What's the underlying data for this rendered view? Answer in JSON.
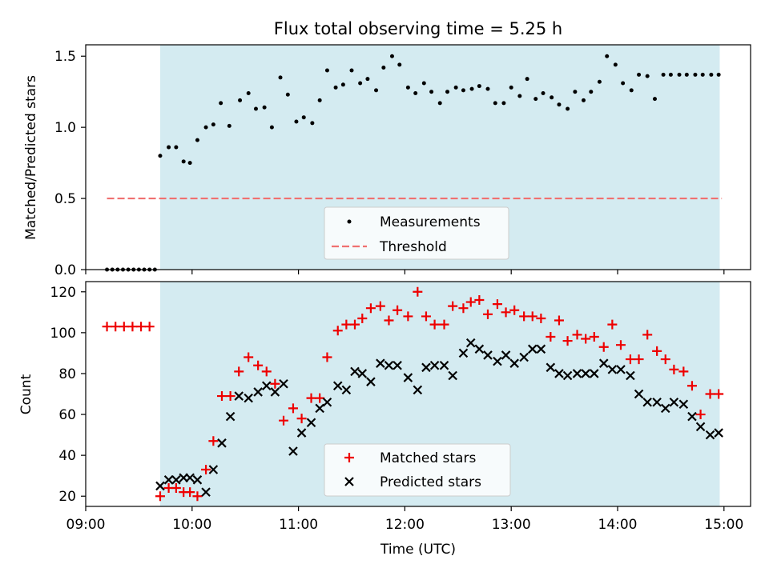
{
  "colors": {
    "observing_span": "#d4ebf1",
    "measurements": "#000000",
    "threshold": "#f07070",
    "matched": "#ee0000",
    "predicted": "#000000"
  },
  "xaxis": {
    "label": "Time (UTC)",
    "range_hours": [
      9.0,
      15.25
    ],
    "ticks": [
      {
        "value": 9,
        "label": "09:00"
      },
      {
        "value": 10,
        "label": "10:00"
      },
      {
        "value": 11,
        "label": "11:00"
      },
      {
        "value": 12,
        "label": "12:00"
      },
      {
        "value": 13,
        "label": "13:00"
      },
      {
        "value": 14,
        "label": "14:00"
      },
      {
        "value": 15,
        "label": "15:00"
      }
    ]
  },
  "chart_data": [
    {
      "type": "scatter",
      "title": "Flux total observing time = 5.25 h",
      "xlabel": "",
      "ylabel": "Matched/Predicted stars",
      "xlim": [
        9.0,
        15.25
      ],
      "ylim": [
        0,
        1.58
      ],
      "yticks": [
        {
          "value": 0,
          "label": "0.0"
        },
        {
          "value": 0.5,
          "label": "0.5"
        },
        {
          "value": 1.0,
          "label": "1.0"
        },
        {
          "value": 1.5,
          "label": "1.5"
        }
      ],
      "observing_span": [
        9.7,
        14.96
      ],
      "threshold": {
        "name": "Threshold",
        "y": 0.5,
        "x": [
          9.2,
          14.98
        ]
      },
      "legend": {
        "placement": "lower center",
        "entries": [
          "Measurements",
          "Threshold"
        ]
      },
      "series": [
        {
          "name": "Measurements",
          "x": [
            9.2,
            9.25,
            9.3,
            9.35,
            9.4,
            9.45,
            9.5,
            9.55,
            9.6,
            9.65,
            9.7,
            9.78,
            9.85,
            9.92,
            9.98,
            10.05,
            10.13,
            10.2,
            10.27,
            10.35,
            10.45,
            10.53,
            10.6,
            10.68,
            10.75,
            10.83,
            10.9,
            10.98,
            11.05,
            11.13,
            11.2,
            11.27,
            11.35,
            11.42,
            11.5,
            11.58,
            11.65,
            11.73,
            11.8,
            11.88,
            11.95,
            12.03,
            12.1,
            12.18,
            12.25,
            12.33,
            12.4,
            12.48,
            12.55,
            12.63,
            12.7,
            12.78,
            12.85,
            12.93,
            13.0,
            13.08,
            13.15,
            13.23,
            13.3,
            13.38,
            13.45,
            13.53,
            13.6,
            13.68,
            13.75,
            13.83,
            13.9,
            13.98,
            14.05,
            14.13,
            14.2,
            14.28,
            14.35,
            14.43,
            14.5,
            14.58,
            14.65,
            14.73,
            14.8,
            14.88,
            14.95
          ],
          "y": [
            0,
            0,
            0,
            0,
            0,
            0,
            0,
            0,
            0,
            0,
            0.8,
            0.86,
            0.86,
            0.76,
            0.75,
            0.91,
            1.0,
            1.02,
            1.17,
            1.01,
            1.19,
            1.24,
            1.13,
            1.14,
            1.0,
            1.35,
            1.23,
            1.04,
            1.07,
            1.03,
            1.19,
            1.4,
            1.28,
            1.3,
            1.4,
            1.31,
            1.34,
            1.26,
            1.42,
            1.5,
            1.44,
            1.28,
            1.24,
            1.31,
            1.25,
            1.17,
            1.25,
            1.28,
            1.26,
            1.27,
            1.29,
            1.27,
            1.17,
            1.17,
            1.28,
            1.22,
            1.34,
            1.2,
            1.24,
            1.21,
            1.16,
            1.13,
            1.25,
            1.19,
            1.25,
            1.32,
            1.5,
            1.44,
            1.31,
            1.26,
            1.37,
            1.36,
            1.2,
            1.37,
            1.37,
            1.37,
            1.37,
            1.37,
            1.37,
            1.37,
            1.37
          ]
        }
      ]
    },
    {
      "type": "scatter",
      "title": "",
      "xlabel": "Time (UTC)",
      "ylabel": "Count",
      "xlim": [
        9.0,
        15.25
      ],
      "ylim": [
        15,
        125
      ],
      "yticks": [
        {
          "value": 20,
          "label": "20"
        },
        {
          "value": 40,
          "label": "40"
        },
        {
          "value": 60,
          "label": "60"
        },
        {
          "value": 80,
          "label": "80"
        },
        {
          "value": 100,
          "label": "100"
        },
        {
          "value": 120,
          "label": "120"
        }
      ],
      "observing_span": [
        9.7,
        14.96
      ],
      "legend": {
        "placement": "lower center",
        "entries": [
          "Matched stars",
          "Predicted stars"
        ]
      },
      "series": [
        {
          "name": "Matched stars",
          "marker": "plus",
          "x": [
            9.2,
            9.28,
            9.36,
            9.44,
            9.52,
            9.6,
            9.7,
            9.78,
            9.85,
            9.92,
            9.98,
            10.05,
            10.13,
            10.2,
            10.28,
            10.36,
            10.44,
            10.53,
            10.62,
            10.7,
            10.78,
            10.86,
            10.95,
            11.03,
            11.12,
            11.2,
            11.27,
            11.37,
            11.45,
            11.53,
            11.6,
            11.68,
            11.77,
            11.85,
            11.93,
            12.03,
            12.12,
            12.2,
            12.28,
            12.37,
            12.45,
            12.55,
            12.62,
            12.7,
            12.78,
            12.87,
            12.95,
            13.03,
            13.12,
            13.2,
            13.28,
            13.37,
            13.45,
            13.53,
            13.62,
            13.7,
            13.78,
            13.87,
            13.95,
            14.03,
            14.12,
            14.2,
            14.28,
            14.37,
            14.45,
            14.53,
            14.62,
            14.7,
            14.78,
            14.87,
            14.95
          ],
          "y": [
            103,
            103,
            103,
            103,
            103,
            103,
            20,
            24,
            24,
            22,
            22,
            20,
            33,
            47,
            69,
            69,
            81,
            88,
            84,
            81,
            75,
            57,
            63,
            58,
            68,
            68,
            88,
            101,
            104,
            104,
            107,
            112,
            113,
            106,
            111,
            108,
            120,
            108,
            104,
            104,
            113,
            112,
            115,
            116,
            109,
            114,
            110,
            111,
            108,
            108,
            107,
            98,
            106,
            96,
            99,
            97,
            98,
            93,
            104,
            94,
            87,
            87,
            99,
            91,
            87,
            82,
            81,
            74,
            60,
            70,
            70
          ]
        },
        {
          "name": "Predicted stars",
          "marker": "x",
          "x": [
            9.7,
            9.78,
            9.85,
            9.92,
            9.98,
            10.05,
            10.13,
            10.2,
            10.28,
            10.36,
            10.44,
            10.53,
            10.62,
            10.7,
            10.78,
            10.86,
            10.95,
            11.03,
            11.12,
            11.2,
            11.27,
            11.37,
            11.45,
            11.53,
            11.6,
            11.68,
            11.77,
            11.85,
            11.93,
            12.03,
            12.12,
            12.2,
            12.28,
            12.37,
            12.45,
            12.55,
            12.62,
            12.7,
            12.78,
            12.87,
            12.95,
            13.03,
            13.12,
            13.2,
            13.28,
            13.37,
            13.45,
            13.53,
            13.62,
            13.7,
            13.78,
            13.87,
            13.95,
            14.03,
            14.12,
            14.2,
            14.28,
            14.37,
            14.45,
            14.53,
            14.62,
            14.7,
            14.78,
            14.87,
            14.95
          ],
          "y": [
            25,
            28,
            28,
            29,
            29,
            28,
            22,
            33,
            46,
            59,
            69,
            68,
            71,
            74,
            71,
            75,
            42,
            51,
            56,
            63,
            66,
            74,
            72,
            81,
            80,
            76,
            85,
            84,
            84,
            78,
            72,
            83,
            84,
            84,
            79,
            90,
            95,
            92,
            89,
            86,
            89,
            85,
            88,
            92,
            92,
            83,
            80,
            79,
            80,
            80,
            80,
            85,
            82,
            82,
            79,
            70,
            66,
            66,
            63,
            66,
            65,
            59,
            54,
            50,
            51
          ]
        }
      ]
    }
  ]
}
